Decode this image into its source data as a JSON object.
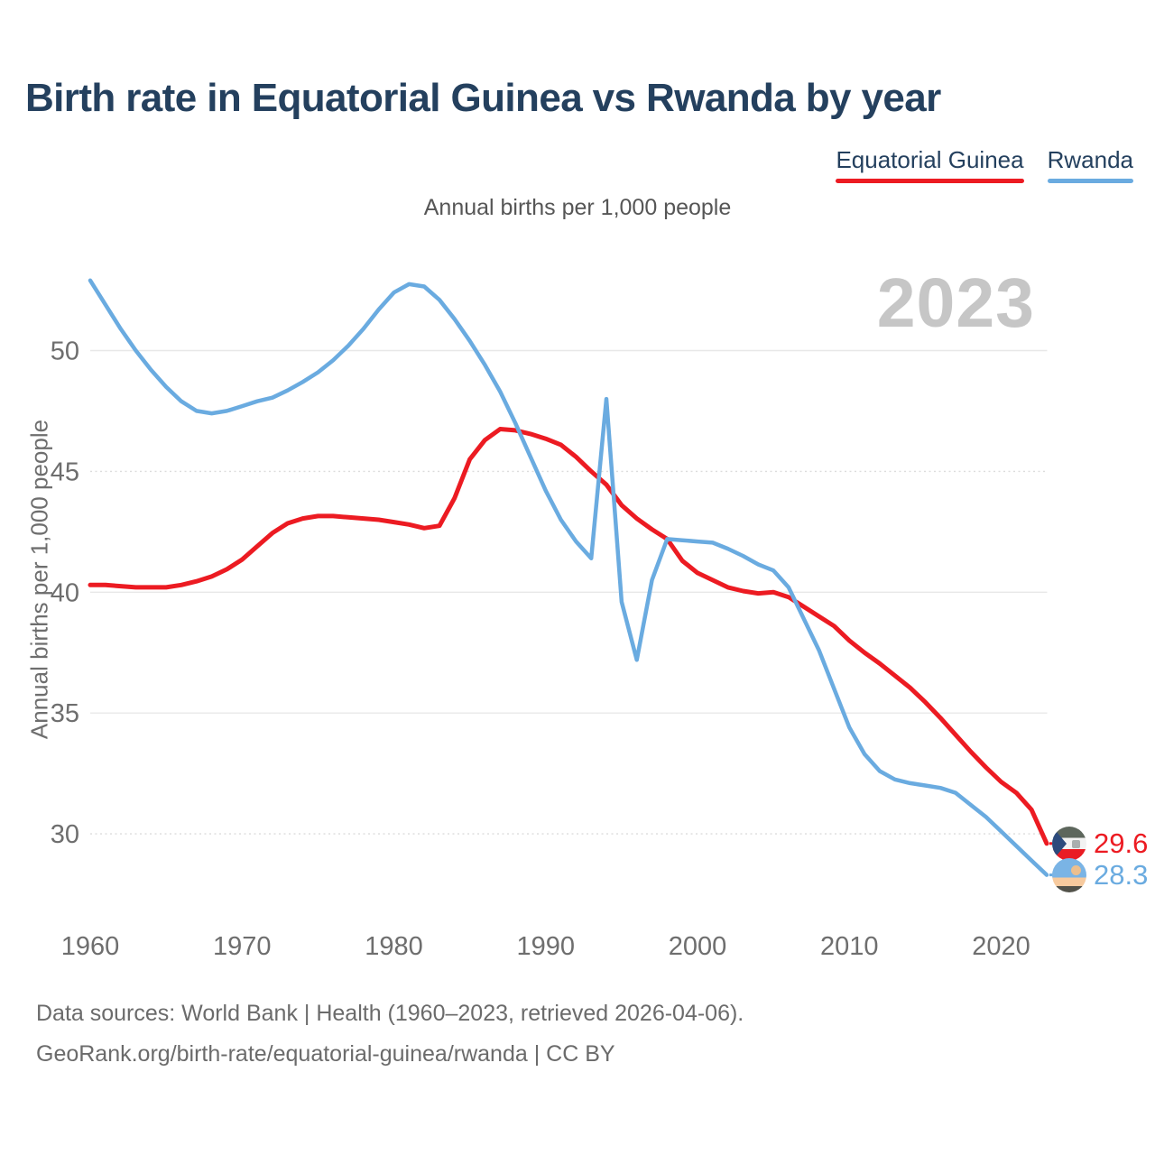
{
  "header": {
    "title": "Birth rate in Equatorial Guinea vs Rwanda by year",
    "subtitle": "Annual births per 1,000 people",
    "watermark": "2023"
  },
  "legend": {
    "items": [
      {
        "label": "Equatorial Guinea",
        "color": "#ec1b22"
      },
      {
        "label": "Rwanda",
        "color": "#6aabe0"
      }
    ]
  },
  "chart_data": {
    "type": "line",
    "title": "Birth rate in Equatorial Guinea vs Rwanda by year",
    "subtitle": "Annual births per 1,000 people",
    "xlabel": "",
    "ylabel": "Annual births per 1,000 people",
    "x_range": [
      1960,
      2023
    ],
    "ylim": [
      27,
      54.5
    ],
    "grid": "horizontal",
    "legend_position": "top-right",
    "x_ticks": [
      1960,
      1970,
      1980,
      1990,
      2000,
      2010,
      2020
    ],
    "y_ticks": [
      30,
      35,
      40,
      45,
      50
    ],
    "dotted_y_ticks": [
      30,
      45
    ],
    "x": [
      1960,
      1961,
      1962,
      1963,
      1964,
      1965,
      1966,
      1967,
      1968,
      1969,
      1970,
      1971,
      1972,
      1973,
      1974,
      1975,
      1976,
      1977,
      1978,
      1979,
      1980,
      1981,
      1982,
      1983,
      1984,
      1985,
      1986,
      1987,
      1988,
      1989,
      1990,
      1991,
      1992,
      1993,
      1994,
      1995,
      1996,
      1997,
      1998,
      1999,
      2000,
      2001,
      2002,
      2003,
      2004,
      2005,
      2006,
      2007,
      2008,
      2009,
      2010,
      2011,
      2012,
      2013,
      2014,
      2015,
      2016,
      2017,
      2018,
      2019,
      2020,
      2021,
      2022,
      2023
    ],
    "series": [
      {
        "name": "Equatorial Guinea",
        "color": "#ec1b22",
        "end_label": "29.6",
        "values": [
          40.3,
          40.3,
          40.25,
          40.2,
          40.2,
          40.2,
          40.3,
          40.45,
          40.65,
          40.95,
          41.35,
          41.9,
          42.45,
          42.85,
          43.05,
          43.15,
          43.15,
          43.1,
          43.05,
          43.0,
          42.9,
          42.8,
          42.65,
          42.75,
          43.9,
          45.5,
          46.3,
          46.75,
          46.7,
          46.55,
          46.35,
          46.1,
          45.6,
          45.0,
          44.45,
          43.6,
          43.05,
          42.6,
          42.2,
          41.3,
          40.8,
          40.5,
          40.2,
          40.05,
          39.95,
          40.0,
          39.8,
          39.4,
          39.0,
          38.6,
          38.0,
          37.5,
          37.05,
          36.55,
          36.05,
          35.45,
          34.8,
          34.1,
          33.4,
          32.75,
          32.15,
          31.7,
          31.0,
          29.6
        ]
      },
      {
        "name": "Rwanda",
        "color": "#6aabe0",
        "end_label": "28.3",
        "values": [
          52.9,
          51.9,
          50.9,
          50.0,
          49.2,
          48.5,
          47.9,
          47.5,
          47.4,
          47.5,
          47.7,
          47.9,
          48.05,
          48.35,
          48.7,
          49.1,
          49.6,
          50.2,
          50.9,
          51.7,
          52.4,
          52.75,
          52.65,
          52.1,
          51.3,
          50.4,
          49.4,
          48.3,
          47.0,
          45.6,
          44.2,
          43.0,
          42.1,
          41.4,
          48.0,
          39.6,
          37.2,
          40.5,
          42.2,
          42.15,
          42.1,
          42.05,
          41.8,
          41.5,
          41.15,
          40.9,
          40.2,
          38.9,
          37.6,
          36.0,
          34.4,
          33.3,
          32.6,
          32.25,
          32.1,
          32.0,
          31.9,
          31.7,
          31.2,
          30.7,
          30.1,
          29.5,
          28.9,
          28.3
        ]
      }
    ]
  },
  "footer": {
    "line1": "Data sources: World Bank | Health (1960–2023, retrieved 2026-04-06).",
    "line2": "GeoRank.org/birth-rate/equatorial-guinea/rwanda | CC BY"
  }
}
